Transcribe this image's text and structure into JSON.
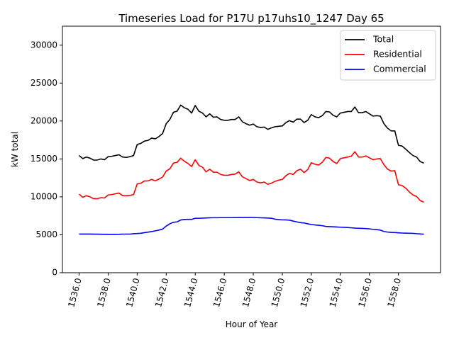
{
  "chart_data": {
    "type": "line",
    "title": "Timeseries Load for P17U p17uhs10_1247  Day 65",
    "xlabel": "Hour of Year",
    "ylabel": "kW total",
    "xlim": [
      1534.85,
      1560.9
    ],
    "ylim": [
      0,
      32500
    ],
    "xticks": [
      1536,
      1538,
      1540,
      1542,
      1544,
      1546,
      1548,
      1550,
      1552,
      1554,
      1556,
      1558
    ],
    "xtick_labels": [
      "1536.0",
      "1538.0",
      "1540.0",
      "1542.0",
      "1544.0",
      "1546.0",
      "1548.0",
      "1550.0",
      "1552.0",
      "1554.0",
      "1556.0",
      "1558.0"
    ],
    "yticks": [
      0,
      5000,
      10000,
      15000,
      20000,
      25000,
      30000
    ],
    "ytick_labels": [
      "0",
      "5000",
      "10000",
      "15000",
      "20000",
      "25000",
      "30000"
    ],
    "legend_position": "top-right",
    "x_start": 1536,
    "x_step": 0.25,
    "series": [
      {
        "name": "Total",
        "color": "#000000",
        "values": [
          15450,
          15050,
          15250,
          15100,
          14850,
          14850,
          15000,
          14900,
          15300,
          15350,
          15450,
          15550,
          15250,
          15200,
          15300,
          15450,
          16900,
          17050,
          17350,
          17450,
          17750,
          17650,
          17950,
          18350,
          19650,
          20200,
          21150,
          21300,
          22100,
          21750,
          21550,
          21050,
          22050,
          21300,
          21050,
          20550,
          20950,
          20500,
          20550,
          20200,
          20100,
          20100,
          20200,
          20200,
          20550,
          19900,
          19650,
          19450,
          19600,
          19250,
          19150,
          19200,
          18900,
          19100,
          19250,
          19300,
          19350,
          19800,
          20050,
          19850,
          20250,
          20250,
          19800,
          20100,
          20850,
          20550,
          20450,
          20700,
          21250,
          21200,
          20750,
          20550,
          21050,
          21150,
          21250,
          21250,
          21850,
          21100,
          21100,
          21250,
          20950,
          20650,
          20700,
          20650,
          19650,
          19050,
          18700,
          18700,
          16800,
          16700,
          16300,
          15850,
          15450,
          15250,
          14650,
          14450
        ]
      },
      {
        "name": "Residential",
        "color": "#ff0000",
        "values": [
          10350,
          9950,
          10150,
          10000,
          9750,
          9750,
          9900,
          9850,
          10250,
          10300,
          10400,
          10500,
          10150,
          10150,
          10200,
          10300,
          11700,
          11800,
          12100,
          12100,
          12300,
          12100,
          12350,
          12600,
          13400,
          13700,
          14450,
          14550,
          15100,
          14700,
          14400,
          14000,
          14900,
          14150,
          13900,
          13300,
          13650,
          13250,
          13250,
          12950,
          12850,
          12850,
          12950,
          13000,
          13300,
          12650,
          12400,
          12150,
          12300,
          11950,
          11850,
          11950,
          11650,
          11800,
          12050,
          12200,
          12300,
          12800,
          13100,
          12950,
          13450,
          13650,
          13200,
          13600,
          14500,
          14300,
          14200,
          14550,
          15200,
          15100,
          14650,
          14400,
          15050,
          15150,
          15250,
          15350,
          15950,
          15250,
          15250,
          15400,
          15150,
          14900,
          15000,
          15050,
          14250,
          13650,
          13400,
          13450,
          11600,
          11500,
          11150,
          10650,
          10250,
          10050,
          9500,
          9300
        ]
      },
      {
        "name": "Commercial",
        "color": "#0000ff",
        "values": [
          5100,
          5100,
          5100,
          5100,
          5080,
          5080,
          5070,
          5060,
          5060,
          5060,
          5050,
          5060,
          5090,
          5090,
          5090,
          5140,
          5170,
          5200,
          5280,
          5350,
          5420,
          5520,
          5620,
          5750,
          6150,
          6450,
          6650,
          6700,
          6950,
          7020,
          7030,
          7030,
          7180,
          7180,
          7200,
          7220,
          7240,
          7250,
          7250,
          7260,
          7260,
          7260,
          7260,
          7270,
          7270,
          7280,
          7280,
          7290,
          7290,
          7260,
          7240,
          7230,
          7210,
          7180,
          7060,
          7000,
          6970,
          6960,
          6930,
          6800,
          6700,
          6600,
          6550,
          6450,
          6350,
          6300,
          6250,
          6200,
          6100,
          6080,
          6050,
          6030,
          6000,
          5980,
          5960,
          5920,
          5880,
          5860,
          5840,
          5820,
          5780,
          5720,
          5680,
          5620,
          5440,
          5360,
          5320,
          5300,
          5260,
          5230,
          5210,
          5200,
          5190,
          5150,
          5110,
          5080
        ]
      }
    ]
  }
}
